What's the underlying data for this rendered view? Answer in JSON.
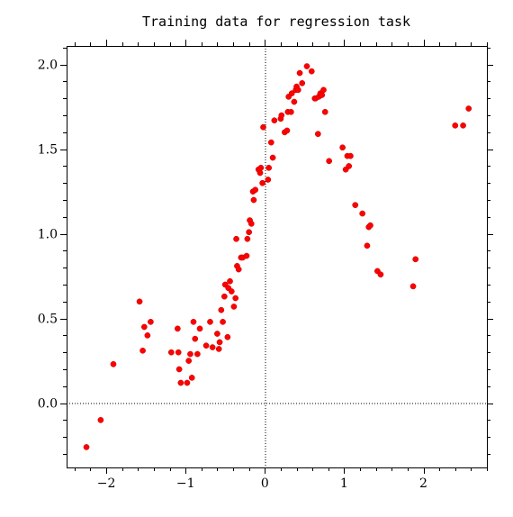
{
  "chart_data": {
    "type": "scatter",
    "title": "Training data for regression task",
    "xlabel": "",
    "ylabel": "",
    "xlim": [
      -2.5,
      2.8
    ],
    "ylim": [
      -0.38,
      2.11
    ],
    "x_ticks": [
      -2,
      -1,
      0,
      1,
      2
    ],
    "x_tick_labels": [
      "−2",
      "−1",
      "0",
      "1",
      "2"
    ],
    "y_ticks": [
      0.0,
      0.5,
      1.0,
      1.5,
      2.0
    ],
    "y_tick_labels": [
      "0.0",
      "0.5",
      "1.0",
      "1.5",
      "2.0"
    ],
    "reference_lines": {
      "x": 0,
      "y": 0,
      "style": "dotted"
    },
    "grid": false,
    "marker_color": "#ff0000",
    "points": [
      [
        -2.25,
        -0.26
      ],
      [
        -2.07,
        -0.1
      ],
      [
        -1.91,
        0.23
      ],
      [
        -1.58,
        0.6
      ],
      [
        -1.54,
        0.31
      ],
      [
        -1.52,
        0.45
      ],
      [
        -1.48,
        0.4
      ],
      [
        -1.44,
        0.48
      ],
      [
        -1.18,
        0.3
      ],
      [
        -1.1,
        0.44
      ],
      [
        -1.09,
        0.3
      ],
      [
        -1.08,
        0.2
      ],
      [
        -1.06,
        0.12
      ],
      [
        -0.98,
        0.12
      ],
      [
        -0.96,
        0.25
      ],
      [
        -0.94,
        0.29
      ],
      [
        -0.92,
        0.15
      ],
      [
        -0.9,
        0.48
      ],
      [
        -0.88,
        0.38
      ],
      [
        -0.85,
        0.29
      ],
      [
        -0.82,
        0.44
      ],
      [
        -0.74,
        0.34
      ],
      [
        -0.69,
        0.48
      ],
      [
        -0.66,
        0.33
      ],
      [
        -0.6,
        0.41
      ],
      [
        -0.58,
        0.32
      ],
      [
        -0.57,
        0.36
      ],
      [
        -0.55,
        0.55
      ],
      [
        -0.53,
        0.48
      ],
      [
        -0.51,
        0.63
      ],
      [
        -0.5,
        0.7
      ],
      [
        -0.47,
        0.39
      ],
      [
        -0.46,
        0.68
      ],
      [
        -0.44,
        0.72
      ],
      [
        -0.42,
        0.66
      ],
      [
        -0.39,
        0.57
      ],
      [
        -0.37,
        0.62
      ],
      [
        -0.36,
        0.97
      ],
      [
        -0.35,
        0.81
      ],
      [
        -0.33,
        0.79
      ],
      [
        -0.3,
        0.86
      ],
      [
        -0.28,
        0.86
      ],
      [
        -0.23,
        0.87
      ],
      [
        -0.22,
        0.97
      ],
      [
        -0.2,
        1.01
      ],
      [
        -0.19,
        1.08
      ],
      [
        -0.17,
        1.06
      ],
      [
        -0.15,
        1.25
      ],
      [
        -0.14,
        1.2
      ],
      [
        -0.12,
        1.26
      ],
      [
        -0.08,
        1.38
      ],
      [
        -0.06,
        1.36
      ],
      [
        -0.05,
        1.39
      ],
      [
        -0.03,
        1.3
      ],
      [
        -0.02,
        1.63
      ],
      [
        0.04,
        1.32
      ],
      [
        0.05,
        1.39
      ],
      [
        0.08,
        1.54
      ],
      [
        0.1,
        1.45
      ],
      [
        0.12,
        1.67
      ],
      [
        0.2,
        1.68
      ],
      [
        0.21,
        1.7
      ],
      [
        0.25,
        1.6
      ],
      [
        0.28,
        1.61
      ],
      [
        0.29,
        1.72
      ],
      [
        0.3,
        1.81
      ],
      [
        0.33,
        1.72
      ],
      [
        0.34,
        1.83
      ],
      [
        0.37,
        1.78
      ],
      [
        0.39,
        1.85
      ],
      [
        0.4,
        1.87
      ],
      [
        0.42,
        1.85
      ],
      [
        0.44,
        1.95
      ],
      [
        0.47,
        1.89
      ],
      [
        0.53,
        1.99
      ],
      [
        0.59,
        1.96
      ],
      [
        0.63,
        1.8
      ],
      [
        0.64,
        1.8
      ],
      [
        0.67,
        1.59
      ],
      [
        0.68,
        1.81
      ],
      [
        0.7,
        1.83
      ],
      [
        0.72,
        1.82
      ],
      [
        0.74,
        1.85
      ],
      [
        0.76,
        1.72
      ],
      [
        0.81,
        1.43
      ],
      [
        0.98,
        1.51
      ],
      [
        1.02,
        1.38
      ],
      [
        1.04,
        1.46
      ],
      [
        1.06,
        1.4
      ],
      [
        1.08,
        1.46
      ],
      [
        1.14,
        1.17
      ],
      [
        1.23,
        1.12
      ],
      [
        1.29,
        0.93
      ],
      [
        1.31,
        1.04
      ],
      [
        1.33,
        1.05
      ],
      [
        1.42,
        0.78
      ],
      [
        1.46,
        0.76
      ],
      [
        1.87,
        0.69
      ],
      [
        1.9,
        0.85
      ],
      [
        2.4,
        1.64
      ],
      [
        2.5,
        1.64
      ],
      [
        2.57,
        1.74
      ]
    ]
  }
}
